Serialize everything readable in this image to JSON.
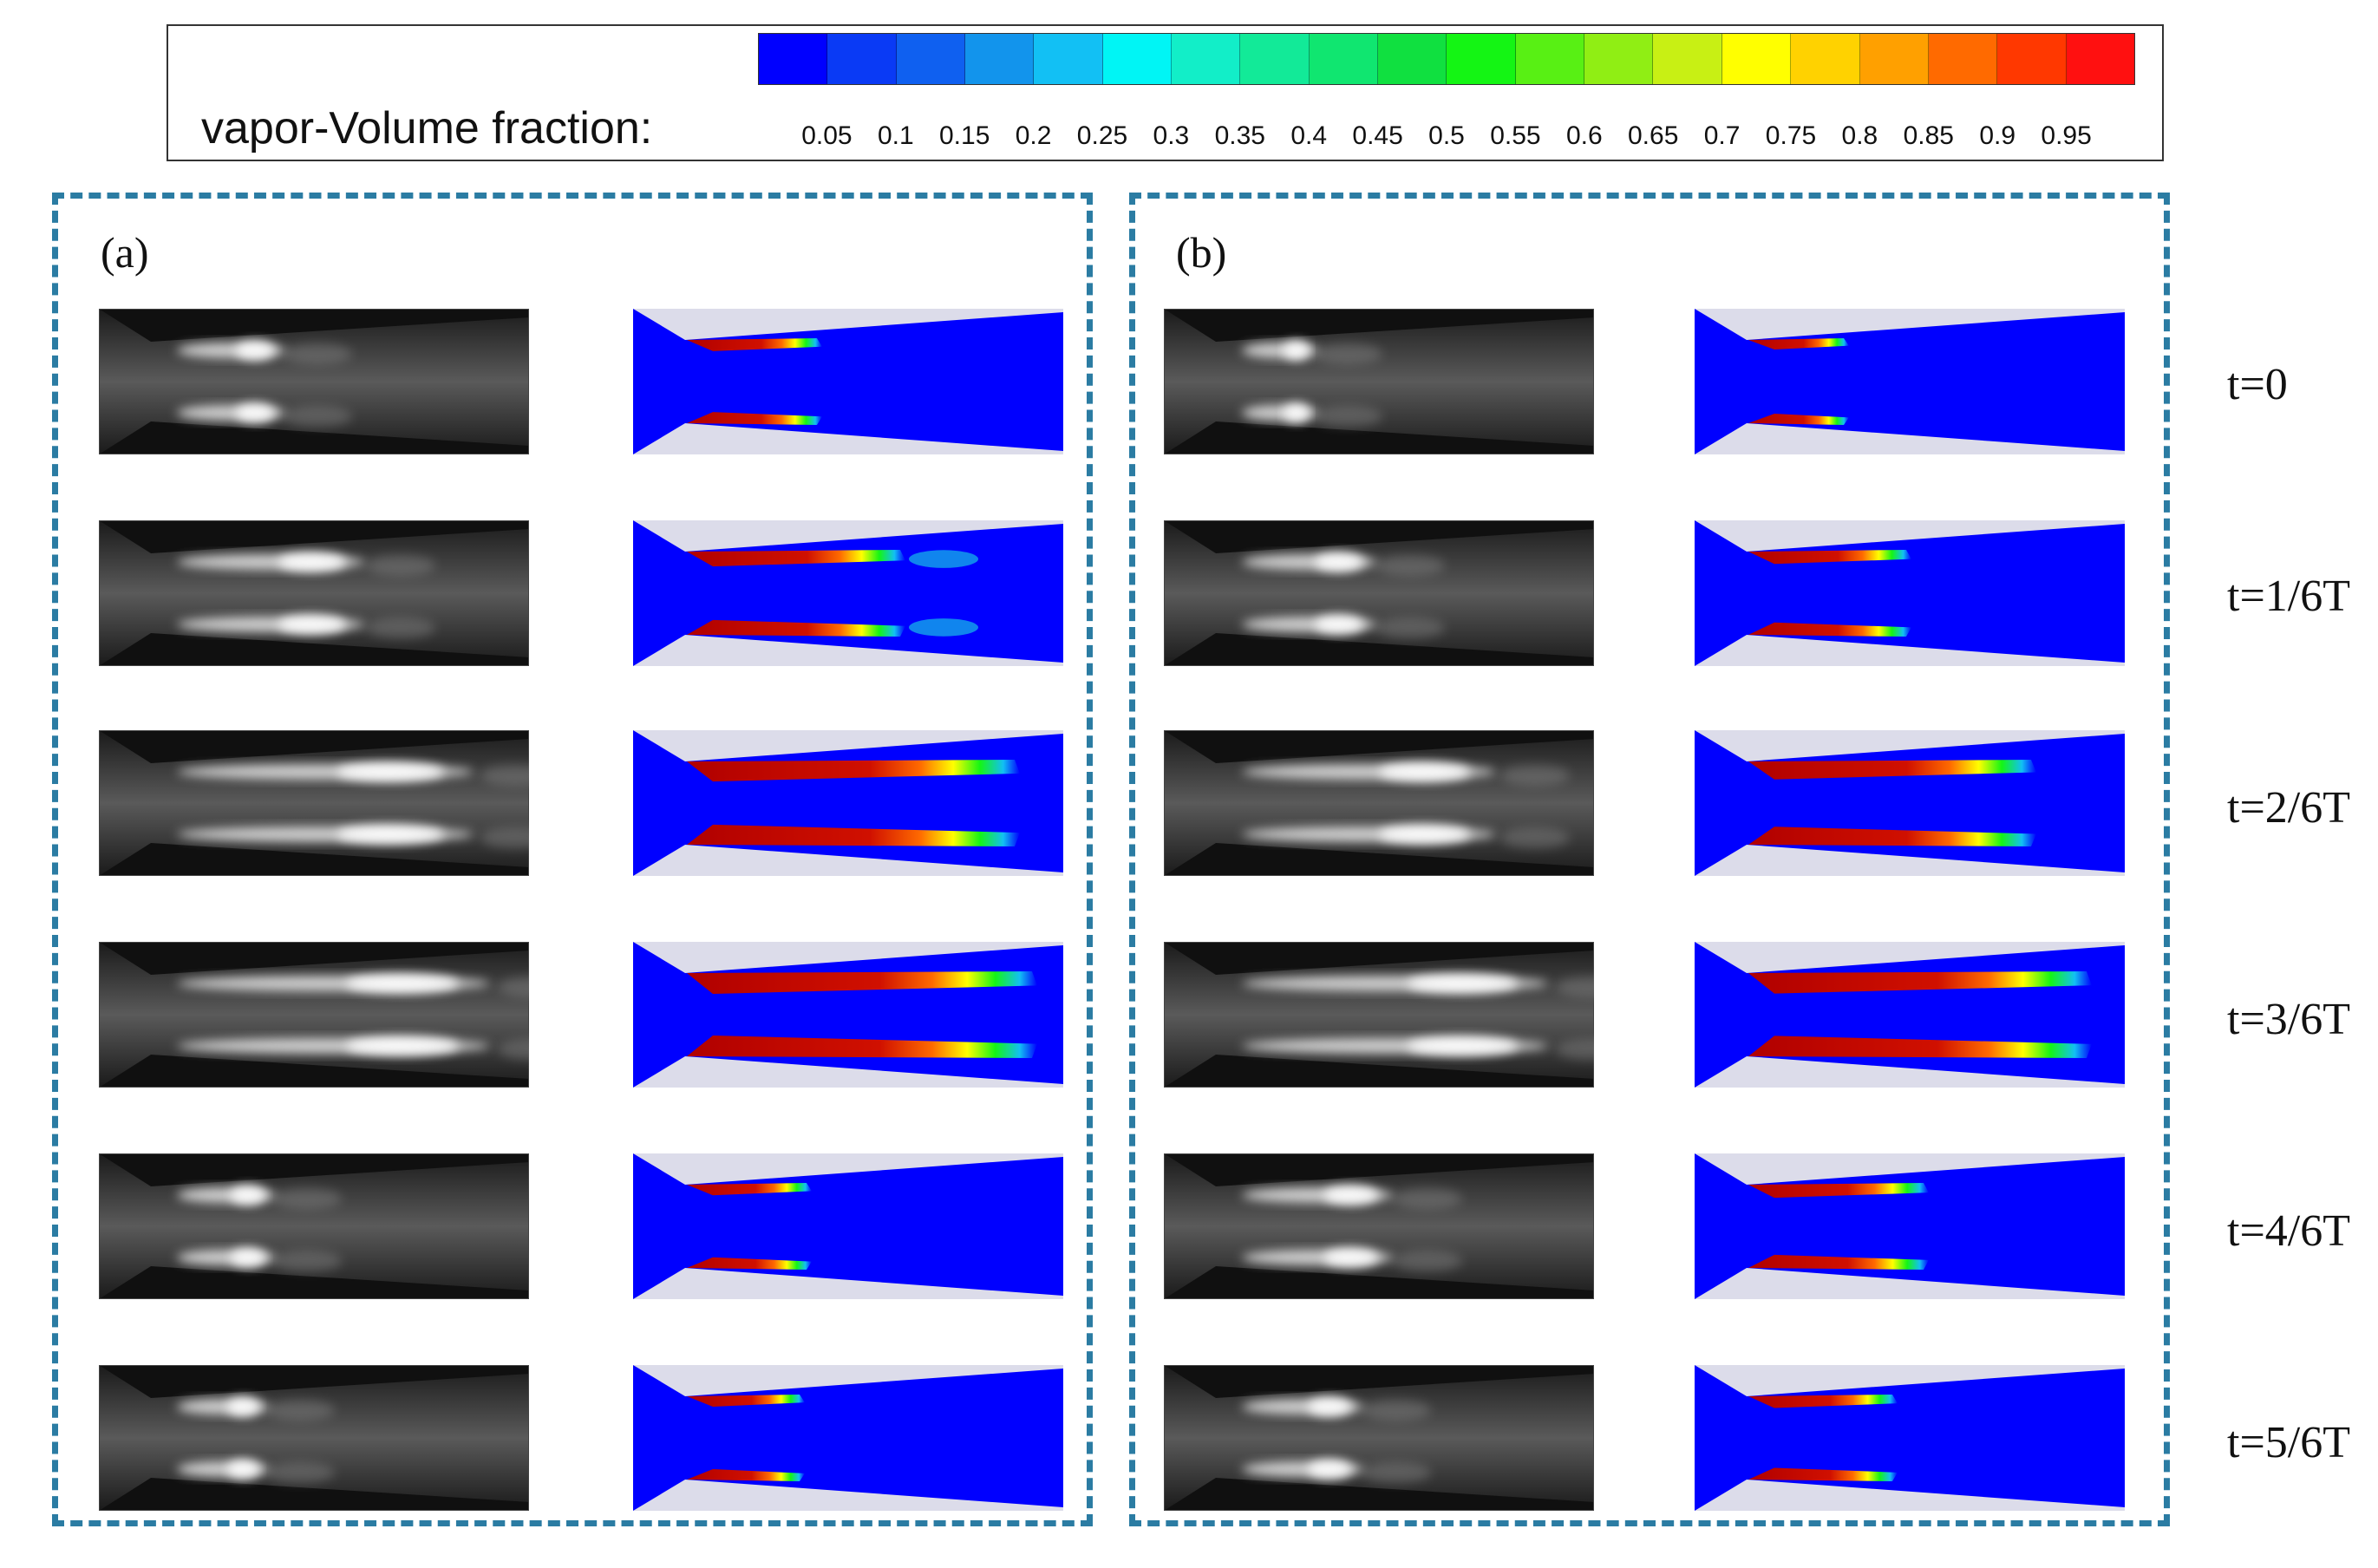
{
  "legend": {
    "title": "vapor-Volume fraction:",
    "ticks": [
      "0.05",
      "0.1",
      "0.15",
      "0.2",
      "0.25",
      "0.3",
      "0.35",
      "0.4",
      "0.45",
      "0.5",
      "0.55",
      "0.6",
      "0.65",
      "0.7",
      "0.75",
      "0.8",
      "0.85",
      "0.9",
      "0.95"
    ],
    "colors": [
      "#0000ff",
      "#0a3af5",
      "#0f60f0",
      "#1294ec",
      "#12c0f4",
      "#00f5f5",
      "#12eec8",
      "#12ea98",
      "#10e670",
      "#10e040",
      "#14f514",
      "#58f014",
      "#90ee14",
      "#c8f014",
      "#ffff00",
      "#ffd200",
      "#ffa000",
      "#ff6a00",
      "#ff3800",
      "#ff1010"
    ]
  },
  "panels": [
    {
      "label": "(a)",
      "cavity_length": [
        0.38,
        0.62,
        0.95,
        1.0,
        0.35,
        0.33
      ],
      "cloud_fraction": [
        0.0,
        0.8,
        0.0,
        0.0,
        0.0,
        0.0
      ]
    },
    {
      "label": "(b)",
      "cavity_length": [
        0.28,
        0.46,
        0.82,
        0.98,
        0.51,
        0.42
      ],
      "cloud_fraction": [
        0.0,
        0.0,
        0.0,
        0.0,
        0.0,
        0.0
      ]
    }
  ],
  "time_labels": [
    "t=0",
    "t=1/6T",
    "t=2/6T",
    "t=3/6T",
    "t=4/6T",
    "t=5/6T"
  ],
  "colors": {
    "frame_border": "#2b7ca3",
    "liquid": "#0000ff",
    "wall": "#dcdcea",
    "photo_bg": "#2a2a2a"
  }
}
